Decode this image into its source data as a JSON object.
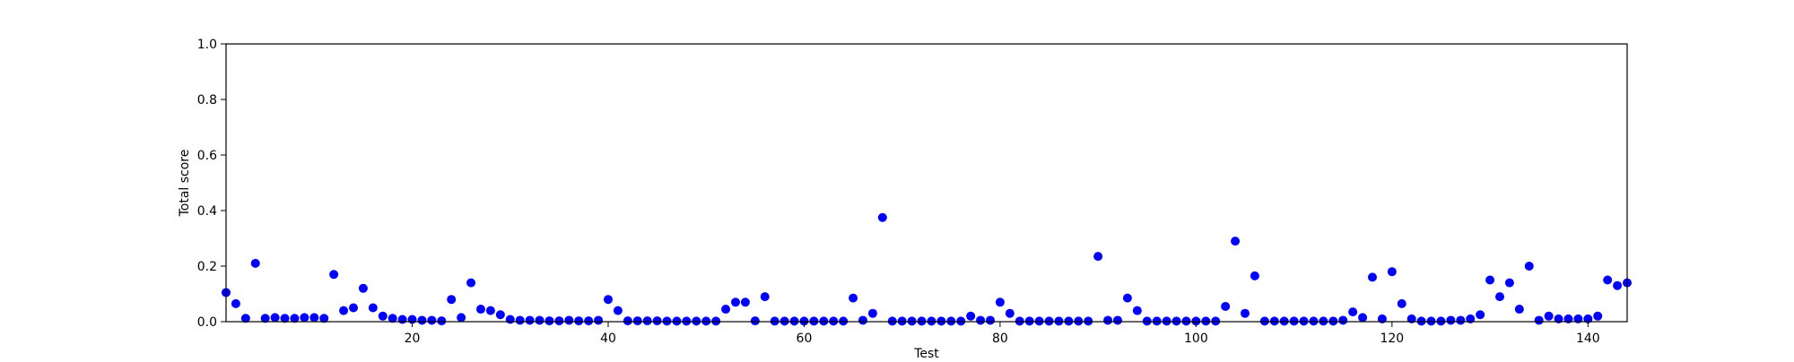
{
  "chart_data": {
    "type": "scatter",
    "title": "",
    "xlabel": "Test",
    "ylabel": "Total score",
    "xlim": [
      1,
      144
    ],
    "ylim": [
      0,
      1.0
    ],
    "xticks": [
      20,
      40,
      60,
      80,
      100,
      120,
      140
    ],
    "xtick_labels": [
      "20",
      "40",
      "60",
      "80",
      "100",
      "120",
      "140"
    ],
    "yticks": [
      0,
      0.2,
      0.4,
      0.6,
      0.8,
      1.0
    ],
    "ytick_labels": [
      "0.0",
      "0.2",
      "0.4",
      "0.6",
      "0.8",
      "1.0"
    ],
    "grid": false,
    "marker_color": "#0000ff",
    "x": [
      1,
      2,
      3,
      4,
      5,
      6,
      7,
      8,
      9,
      10,
      11,
      12,
      13,
      14,
      15,
      16,
      17,
      18,
      19,
      20,
      21,
      22,
      23,
      24,
      25,
      26,
      27,
      28,
      29,
      30,
      31,
      32,
      33,
      34,
      35,
      36,
      37,
      38,
      39,
      40,
      41,
      42,
      43,
      44,
      45,
      46,
      47,
      48,
      49,
      50,
      51,
      52,
      53,
      54,
      55,
      56,
      57,
      58,
      59,
      60,
      61,
      62,
      63,
      64,
      65,
      66,
      67,
      68,
      69,
      70,
      71,
      72,
      73,
      74,
      75,
      76,
      77,
      78,
      79,
      80,
      81,
      82,
      83,
      84,
      85,
      86,
      87,
      88,
      89,
      90,
      91,
      92,
      93,
      94,
      95,
      96,
      97,
      98,
      99,
      100,
      101,
      102,
      103,
      104,
      105,
      106,
      107,
      108,
      109,
      110,
      111,
      112,
      113,
      114,
      115,
      116,
      117,
      118,
      119,
      120,
      121,
      122,
      123,
      124,
      125,
      126,
      127,
      128,
      129,
      130,
      131,
      132,
      133,
      134,
      135,
      136,
      137,
      138,
      139,
      140,
      141,
      142,
      143,
      144
    ],
    "y": [
      0.105,
      0.065,
      0.012,
      0.21,
      0.012,
      0.015,
      0.012,
      0.012,
      0.015,
      0.015,
      0.012,
      0.17,
      0.04,
      0.05,
      0.12,
      0.05,
      0.02,
      0.012,
      0.008,
      0.008,
      0.005,
      0.005,
      0.003,
      0.08,
      0.015,
      0.14,
      0.045,
      0.04,
      0.025,
      0.008,
      0.005,
      0.005,
      0.005,
      0.003,
      0.003,
      0.005,
      0.003,
      0.003,
      0.005,
      0.08,
      0.04,
      0.003,
      0.003,
      0.003,
      0.003,
      0.002,
      0.002,
      0.002,
      0.002,
      0.002,
      0.002,
      0.045,
      0.07,
      0.07,
      0.003,
      0.09,
      0.002,
      0.002,
      0.002,
      0.002,
      0.002,
      0.002,
      0.002,
      0.002,
      0.085,
      0.005,
      0.03,
      0.375,
      0.002,
      0.002,
      0.002,
      0.002,
      0.002,
      0.002,
      0.002,
      0.002,
      0.02,
      0.005,
      0.005,
      0.07,
      0.03,
      0.002,
      0.002,
      0.002,
      0.002,
      0.002,
      0.002,
      0.002,
      0.002,
      0.235,
      0.005,
      0.005,
      0.085,
      0.04,
      0.002,
      0.002,
      0.002,
      0.002,
      0.002,
      0.002,
      0.002,
      0.002,
      0.055,
      0.29,
      0.03,
      0.165,
      0.002,
      0.002,
      0.002,
      0.002,
      0.002,
      0.002,
      0.002,
      0.002,
      0.005,
      0.035,
      0.015,
      0.16,
      0.01,
      0.18,
      0.065,
      0.01,
      0.002,
      0.002,
      0.002,
      0.005,
      0.005,
      0.01,
      0.025,
      0.15,
      0.09,
      0.14,
      0.045,
      0.2,
      0.005,
      0.02,
      0.01,
      0.01,
      0.01,
      0.01,
      0.02,
      0.15,
      0.13,
      0.14
    ]
  }
}
